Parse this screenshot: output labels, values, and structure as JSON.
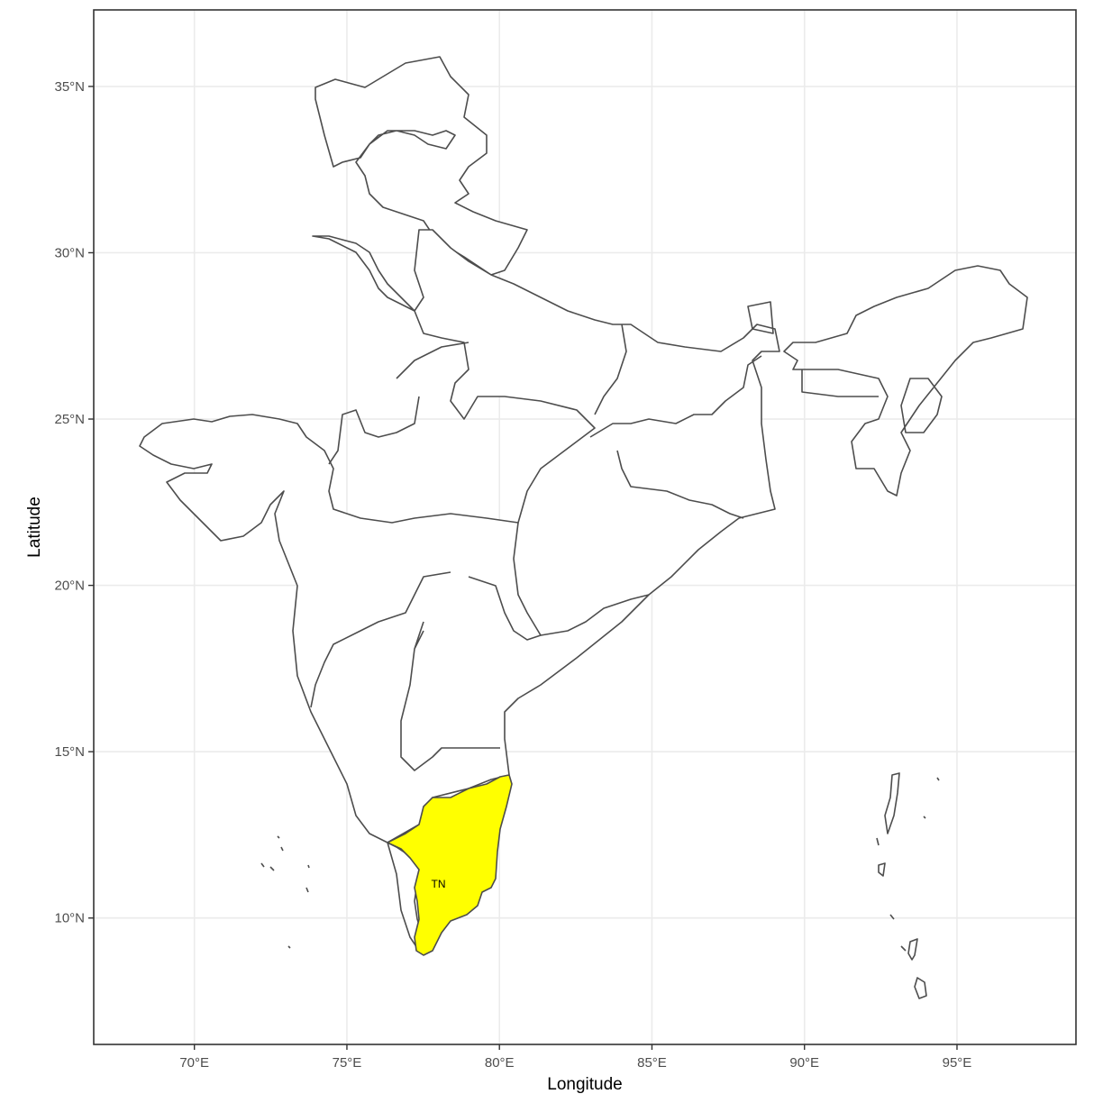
{
  "chart_data": {
    "type": "map",
    "xlabel": "Longitude",
    "ylabel": "Latitude",
    "x_ticks": [
      "70°E",
      "75°E",
      "80°E",
      "85°E",
      "90°E",
      "95°E"
    ],
    "x_tick_values": [
      70,
      75,
      80,
      85,
      90,
      95
    ],
    "y_ticks": [
      "10°N",
      "15°N",
      "20°N",
      "25°N",
      "30°N",
      "35°N"
    ],
    "y_tick_values": [
      10,
      15,
      20,
      25,
      30,
      35
    ],
    "xlim": [
      66.7,
      98.9
    ],
    "ylim": [
      6.2,
      37.3
    ],
    "grid": true,
    "highlighted_region": {
      "label": "TN",
      "fill": "#ffff00",
      "label_lon": 78.0,
      "label_lat": 11.0
    },
    "colors": {
      "panel_border": "#333333",
      "grid": "#ebebeb",
      "boundary": "#4d4d4d",
      "default_fill": "#ffffff"
    }
  }
}
